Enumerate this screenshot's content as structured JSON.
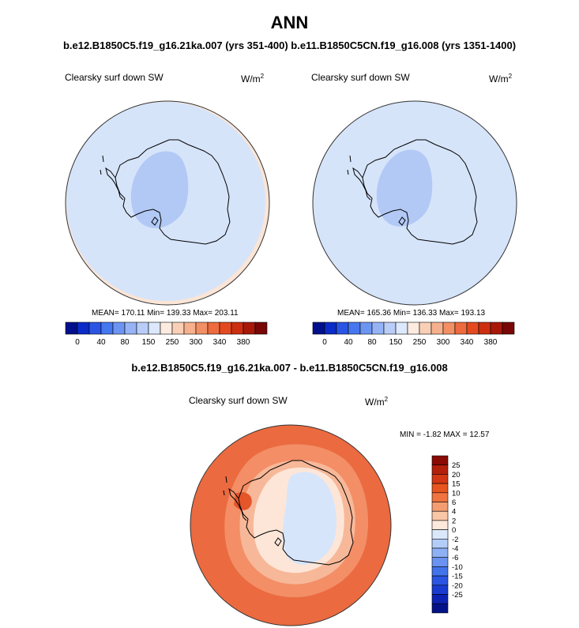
{
  "title": "ANN",
  "subtitle": "b.e12.B1850C5.f19_g16.21ka.007 (yrs 351-400) b.e11.B1850C5CN.f19_g16.008 (yrs 1351-1400)",
  "panels": [
    {
      "variable": "Clearsky surf down SW",
      "units_base": "W/m",
      "units_exp": "2",
      "stats": "MEAN= 170.11  Min= 139.33  Max= 203.11"
    },
    {
      "variable": "Clearsky surf down SW",
      "units_base": "W/m",
      "units_exp": "2",
      "stats": "MEAN= 165.36  Min= 136.33  Max= 193.13"
    }
  ],
  "colorbar": {
    "colors": [
      "#00108c",
      "#0a2bc8",
      "#2a55e4",
      "#4577ee",
      "#6c95f2",
      "#95b3f5",
      "#b9cdf8",
      "#dce8fb",
      "#fdebe0",
      "#f9cfb6",
      "#f6b08d",
      "#f28f64",
      "#ed6b3f",
      "#e44a20",
      "#cc2f10",
      "#a81809",
      "#780606"
    ],
    "tick_labels": [
      "0",
      "40",
      "80",
      "150",
      "250",
      "300",
      "340",
      "380"
    ]
  },
  "diff": {
    "title": "b.e12.B1850C5.f19_g16.21ka.007 - b.e11.B1850C5CN.f19_g16.008",
    "variable": "Clearsky surf down SW",
    "units_base": "W/m",
    "units_exp": "2",
    "stats": "MIN =  -1.82 MAX =  12.57",
    "legend": {
      "colors": [
        "#8a0a04",
        "#b2200c",
        "#d43714",
        "#e8551f",
        "#f07440",
        "#f59d72",
        "#f9c6a6",
        "#fde8dc",
        "#dbe8fb",
        "#b4cdf8",
        "#8eb0f4",
        "#6a92f0",
        "#4273ea",
        "#2a55e2",
        "#1a3bd0",
        "#0d22b2",
        "#041288"
      ],
      "labels": [
        "25",
        "20",
        "15",
        "10",
        "6",
        "4",
        "2",
        "0",
        "-2",
        "-4",
        "-6",
        "-10",
        "-15",
        "-20",
        "-25"
      ]
    }
  }
}
